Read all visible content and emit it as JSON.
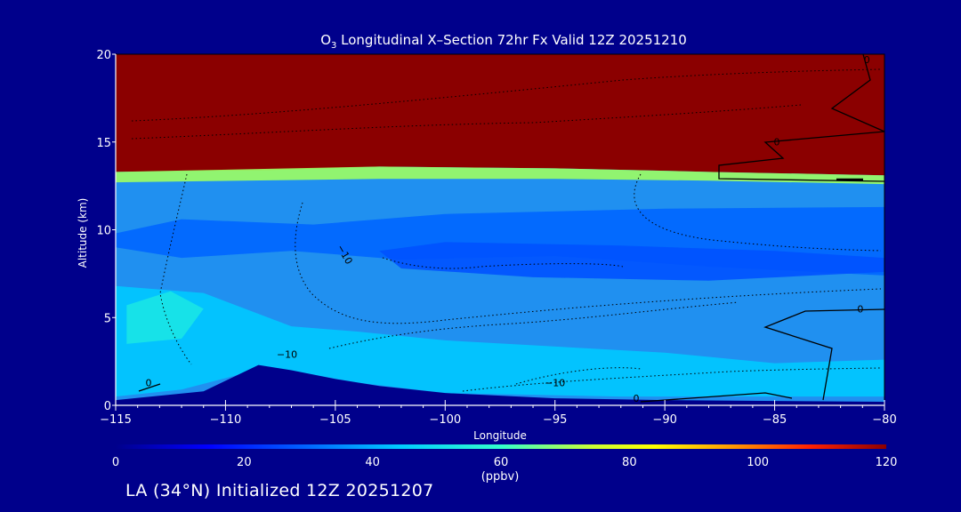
{
  "chart_data": {
    "type": "heatmap",
    "title_species": "O",
    "title_subscript": "3",
    "title_rest": " Longitudinal X–Section 72hr  Fx Valid 12Z 20251210",
    "xlabel": "Longitude",
    "ylabel": "Altitude (km)",
    "xlim": [
      -115,
      -80
    ],
    "ylim": [
      0,
      20
    ],
    "x_ticks": [
      {
        "value": -115,
        "label": "−115"
      },
      {
        "value": -110,
        "label": "−110"
      },
      {
        "value": -105,
        "label": "−105"
      },
      {
        "value": -100,
        "label": "−100"
      },
      {
        "value": -95,
        "label": "−95"
      },
      {
        "value": -90,
        "label": "−90"
      },
      {
        "value": -85,
        "label": "−85"
      },
      {
        "value": -80,
        "label": "−80"
      }
    ],
    "y_ticks": [
      {
        "value": 0,
        "label": "0"
      },
      {
        "value": 5,
        "label": "5"
      },
      {
        "value": 10,
        "label": "10"
      },
      {
        "value": 15,
        "label": "15"
      },
      {
        "value": 20,
        "label": "20"
      }
    ],
    "colorbar": {
      "label": "(ppbv)",
      "min": 0,
      "max": 120,
      "ticks": [
        {
          "value": 0,
          "label": "0"
        },
        {
          "value": 20,
          "label": "20"
        },
        {
          "value": 40,
          "label": "40"
        },
        {
          "value": 60,
          "label": "60"
        },
        {
          "value": 80,
          "label": "80"
        },
        {
          "value": 100,
          "label": "100"
        },
        {
          "value": 120,
          "label": "120"
        }
      ]
    },
    "field": {
      "tropopause_km": [
        {
          "lon": -115,
          "alt": 13.3
        },
        {
          "lon": -108,
          "alt": 13.4
        },
        {
          "lon": -103,
          "alt": 13.6
        },
        {
          "lon": -95,
          "alt": 13.5
        },
        {
          "lon": -88,
          "alt": 13.3
        },
        {
          "lon": -80,
          "alt": 13.1
        }
      ],
      "regions": [
        {
          "name": "mid-troposphere band",
          "value": 30,
          "points": [
            [
              -115,
              9.8
            ],
            [
              -112,
              10.6
            ],
            [
              -106,
              10.3
            ],
            [
              -100,
              10.9
            ],
            [
              -90,
              11.2
            ],
            [
              -80,
              11.3
            ],
            [
              -80,
              7.4
            ],
            [
              -88,
              7.9
            ],
            [
              -95,
              8.5
            ],
            [
              -102,
              8.3
            ],
            [
              -107,
              8.8
            ],
            [
              -112,
              8.4
            ],
            [
              -115,
              9
            ]
          ]
        },
        {
          "name": "low ozone core",
          "value": 27,
          "points": [
            [
              -103,
              8.8
            ],
            [
              -100,
              9.3
            ],
            [
              -92,
              9.1
            ],
            [
              -85,
              8.8
            ],
            [
              -80,
              8.4
            ],
            [
              -80,
              7.6
            ],
            [
              -88,
              7.1
            ],
            [
              -96,
              7.3
            ],
            [
              -102,
              7.8
            ]
          ]
        },
        {
          "name": "lower troposphere",
          "value": 44,
          "points": [
            [
              -115,
              6.8
            ],
            [
              -111,
              6.4
            ],
            [
              -107,
              4.5
            ],
            [
              -104,
              4.2
            ],
            [
              -100,
              3.7
            ],
            [
              -90,
              3
            ],
            [
              -85,
              2.4
            ],
            [
              -80,
              2.6
            ],
            [
              -80,
              0.5
            ],
            [
              -85,
              0.5
            ],
            [
              -92,
              0.5
            ],
            [
              -100,
              0.7
            ],
            [
              -104,
              1.3
            ],
            [
              -108,
              2.2
            ],
            [
              -112,
              0.9
            ],
            [
              -115,
              0.5
            ]
          ]
        },
        {
          "name": "boundary layer high",
          "value": 52,
          "points": [
            [
              -114.5,
              5.7
            ],
            [
              -112.5,
              6.5
            ],
            [
              -111,
              5.5
            ],
            [
              -112,
              3.8
            ],
            [
              -114.5,
              3.5
            ]
          ]
        },
        {
          "name": "stratospheric transition",
          "value": 70,
          "points": [
            [
              -115,
              13.3
            ],
            [
              -103,
              13.6
            ],
            [
              -95,
              13.5
            ],
            [
              -88,
              13.3
            ],
            [
              -80,
              13.1
            ],
            [
              -80,
              12.6
            ],
            [
              -88,
              12.8
            ],
            [
              -95,
              12.9
            ],
            [
              -103,
              12.9
            ],
            [
              -115,
              12.7
            ]
          ]
        }
      ],
      "terrain_km": [
        {
          "lon": -115,
          "alt": 0.3
        },
        {
          "lon": -111,
          "alt": 0.8
        },
        {
          "lon": -108.5,
          "alt": 2.3
        },
        {
          "lon": -107,
          "alt": 2
        },
        {
          "lon": -105,
          "alt": 1.5
        },
        {
          "lon": -103,
          "alt": 1.1
        },
        {
          "lon": -100,
          "alt": 0.7
        },
        {
          "lon": -95,
          "alt": 0.4
        },
        {
          "lon": -90,
          "alt": 0.3
        },
        {
          "lon": -80,
          "alt": 0.2
        }
      ]
    },
    "contour_labels": [
      {
        "text": "−10",
        "lon": -104.7,
        "alt": 8.5,
        "rotate": 60
      },
      {
        "text": "−10",
        "lon": -107.2,
        "alt": 2.7,
        "rotate": 0
      },
      {
        "text": "−10",
        "lon": -95.0,
        "alt": 1.1,
        "rotate": 0
      },
      {
        "text": "0",
        "lon": -113.5,
        "alt": 1.1,
        "rotate": 0
      },
      {
        "text": "0",
        "lon": -91.3,
        "alt": 0.2,
        "rotate": 0
      },
      {
        "text": "0",
        "lon": -81.1,
        "alt": 5.3,
        "rotate": 0
      },
      {
        "text": "0",
        "lon": -84.9,
        "alt": 14.8,
        "rotate": 0
      },
      {
        "text": "0",
        "lon": -80.8,
        "alt": 19.5,
        "rotate": 0
      }
    ]
  },
  "footer": "LA (34°N) Initialized 12Z 20251207"
}
